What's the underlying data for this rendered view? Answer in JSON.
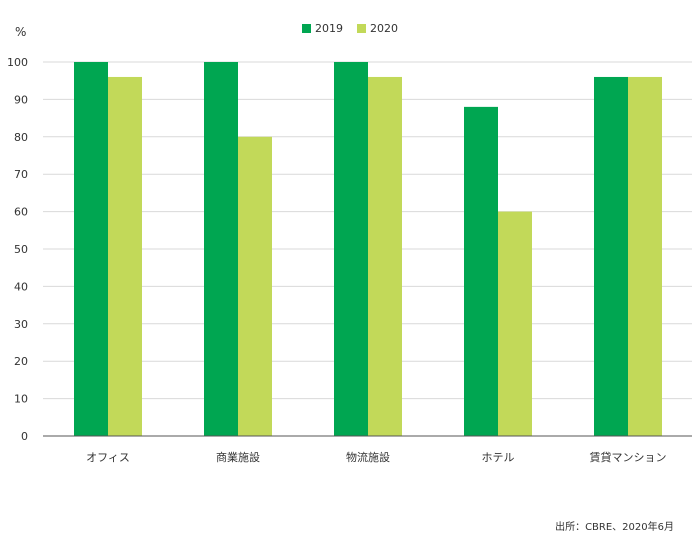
{
  "chart_data": {
    "type": "bar",
    "categories": [
      "オフィス",
      "商業施設",
      "物流施設",
      "ホテル",
      "賃貸マンション"
    ],
    "series": [
      {
        "name": "2019",
        "values": [
          100,
          100,
          100,
          88,
          96
        ],
        "color": "#00a651"
      },
      {
        "name": "2020",
        "values": [
          96,
          80,
          96,
          60,
          96
        ],
        "color": "#c2d959"
      }
    ],
    "y_unit": "%",
    "ylim": [
      0,
      100
    ],
    "y_ticks": [
      0,
      10,
      20,
      30,
      40,
      50,
      60,
      70,
      80,
      90,
      100
    ],
    "grid": true,
    "legend_position": "top-center",
    "axis_color": "#555555",
    "grid_color": "#d9d9d9"
  },
  "source": "出所：CBRE、2020年6月"
}
